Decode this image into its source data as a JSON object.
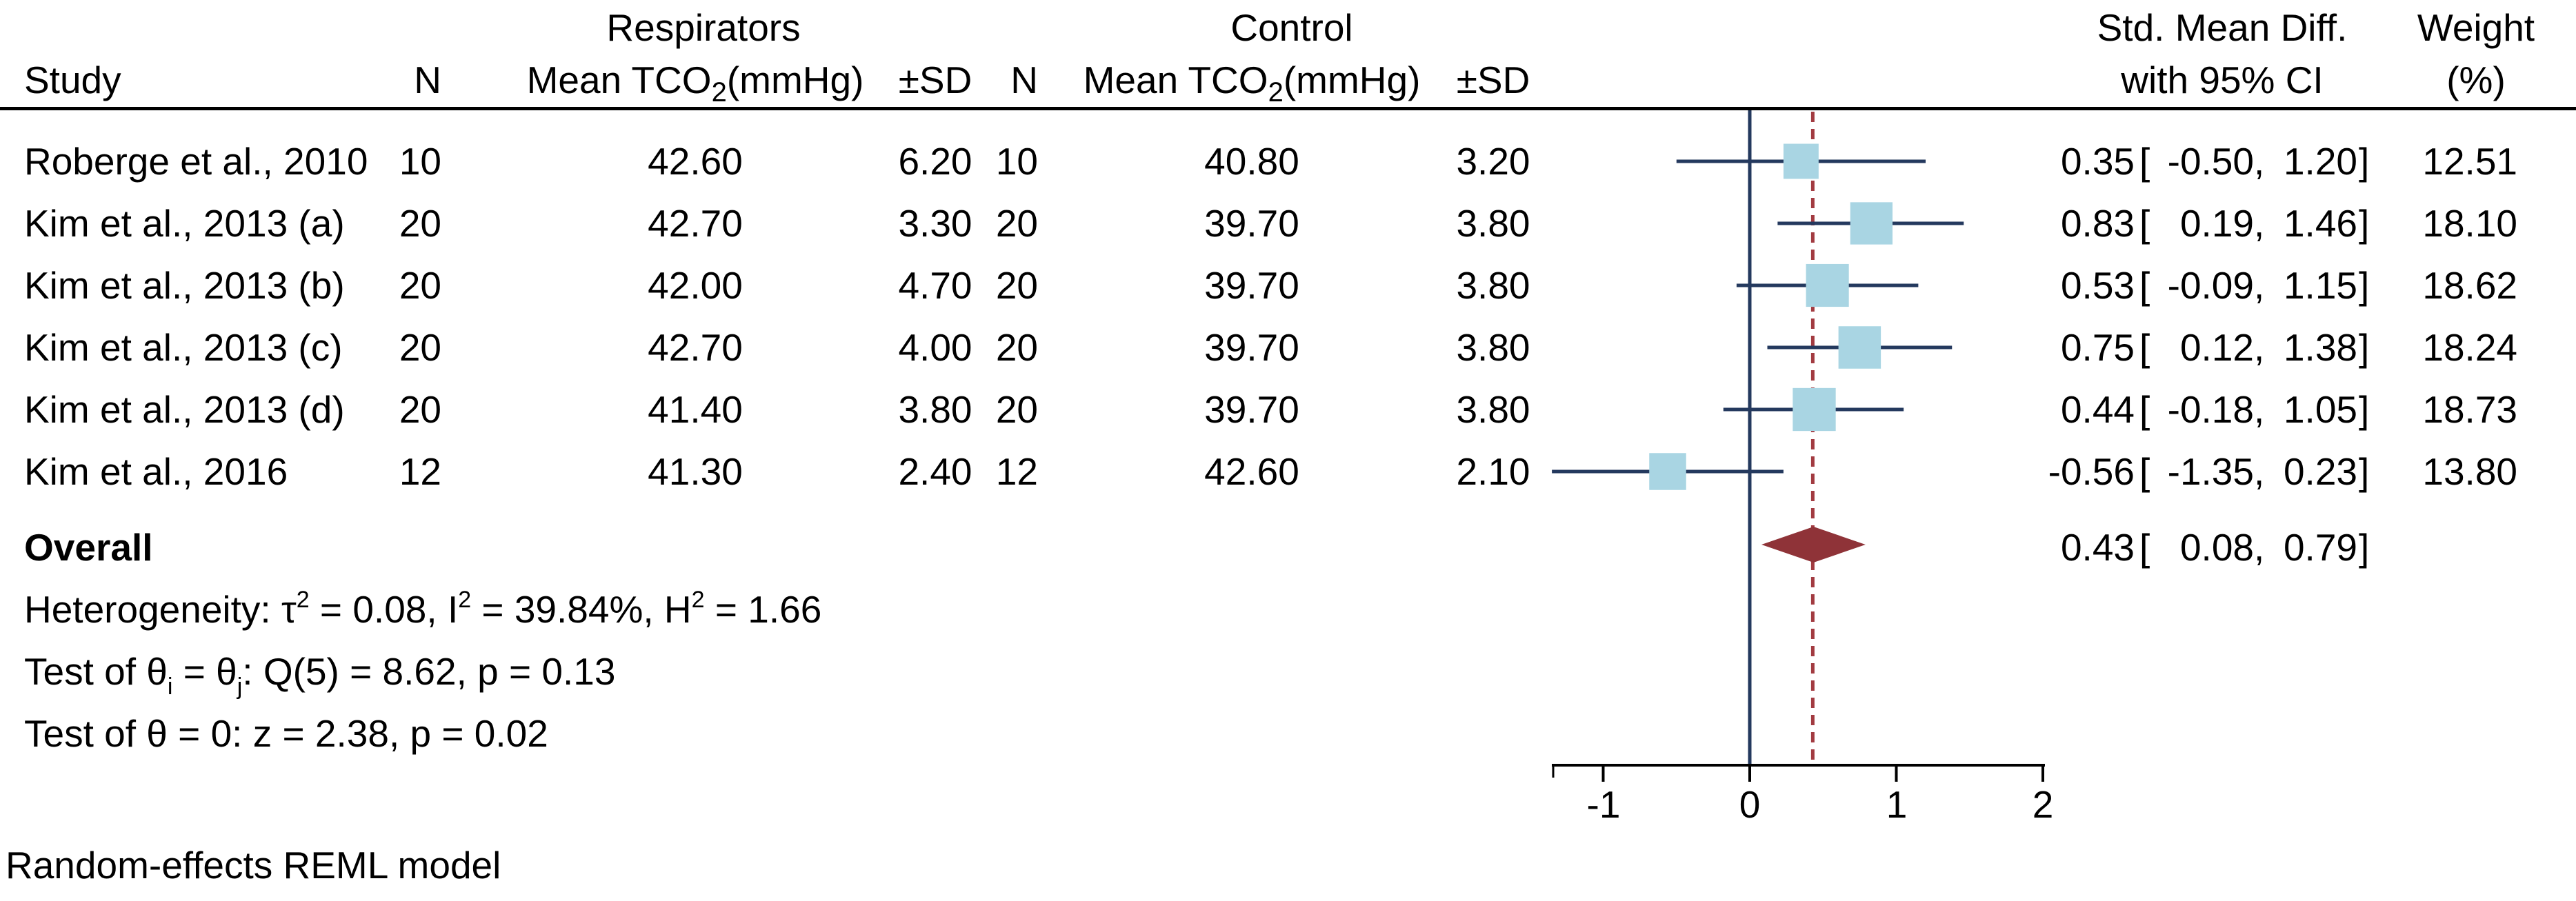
{
  "header": {
    "group1": "Respirators",
    "group2": "Control",
    "col_study": "Study",
    "col_n": "N",
    "mean_pre": "Mean TCO",
    "mean_sub": "2",
    "mean_post": "(mmHg)",
    "col_sd": "±SD",
    "smd_line1": "Std. Mean Diff.",
    "smd_line2": "with 95% CI",
    "weight_line1": "Weight",
    "weight_line2": "(%)"
  },
  "punct": {
    "open": "[",
    "comma": ",",
    "close": "]"
  },
  "rows": [
    {
      "study": "Roberge et al., 2010",
      "n1": "10",
      "mean1": "42.60",
      "sd1": "6.20",
      "n2": "10",
      "mean2": "40.80",
      "sd2": "3.20",
      "est": "0.35",
      "lo": "-0.50",
      "hi": "1.20",
      "weight": "12.51"
    },
    {
      "study": "Kim et al., 2013 (a)",
      "n1": "20",
      "mean1": "42.70",
      "sd1": "3.30",
      "n2": "20",
      "mean2": "39.70",
      "sd2": "3.80",
      "est": "0.83",
      "lo": "0.19",
      "hi": "1.46",
      "weight": "18.10"
    },
    {
      "study": "Kim et al., 2013 (b)",
      "n1": "20",
      "mean1": "42.00",
      "sd1": "4.70",
      "n2": "20",
      "mean2": "39.70",
      "sd2": "3.80",
      "est": "0.53",
      "lo": "-0.09",
      "hi": "1.15",
      "weight": "18.62"
    },
    {
      "study": "Kim et al., 2013 (c)",
      "n1": "20",
      "mean1": "42.70",
      "sd1": "4.00",
      "n2": "20",
      "mean2": "39.70",
      "sd2": "3.80",
      "est": "0.75",
      "lo": "0.12",
      "hi": "1.38",
      "weight": "18.24"
    },
    {
      "study": "Kim et al., 2013 (d)",
      "n1": "20",
      "mean1": "41.40",
      "sd1": "3.80",
      "n2": "20",
      "mean2": "39.70",
      "sd2": "3.80",
      "est": "0.44",
      "lo": "-0.18",
      "hi": "1.05",
      "weight": "18.73"
    },
    {
      "study": "Kim et al., 2016",
      "n1": "12",
      "mean1": "41.30",
      "sd1": "2.40",
      "n2": "12",
      "mean2": "42.60",
      "sd2": "2.10",
      "est": "-0.56",
      "lo": "-1.35",
      "hi": "0.23",
      "weight": "13.80"
    }
  ],
  "overall_row": {
    "label": "Overall",
    "est": "0.43",
    "lo": "0.08",
    "hi": "0.79"
  },
  "stats": {
    "het": [
      "Heterogeneity: τ",
      "2",
      " = 0.08, I",
      "2",
      " = 39.84%, H",
      "2",
      " = 1.66"
    ],
    "test1": [
      "Test of θ",
      "i",
      " = θ",
      "j",
      ": Q(5) = 8.62, p = 0.13"
    ],
    "test2": "Test of θ = 0: z = 2.38, p = 0.02"
  },
  "footer": "Random-effects REML model",
  "axis": {
    "ticks": [
      "-1",
      "0",
      "1",
      "2"
    ]
  },
  "colors": {
    "square": "#a9d5e3",
    "ci_line": "#24395e",
    "zero_line": "#24395e",
    "overall_dashed": "#a23b41",
    "diamond": "#8f3338",
    "axis": "#000000"
  },
  "chart_data": {
    "type": "forest",
    "title": "",
    "effect_label": "Std. Mean Diff. with 95% CI",
    "xlim": [
      -1.35,
      2.0
    ],
    "x_ticks": [
      -1,
      0,
      1,
      2
    ],
    "zero_line": 0,
    "overall_line": 0.43,
    "grid": false,
    "studies": [
      {
        "name": "Roberge et al., 2010",
        "n_treat": 10,
        "mean_treat": 42.6,
        "sd_treat": 6.2,
        "n_ctrl": 10,
        "mean_ctrl": 40.8,
        "sd_ctrl": 3.2,
        "est": 0.35,
        "lo": -0.5,
        "hi": 1.2,
        "weight": 12.51
      },
      {
        "name": "Kim et al., 2013 (a)",
        "n_treat": 20,
        "mean_treat": 42.7,
        "sd_treat": 3.3,
        "n_ctrl": 20,
        "mean_ctrl": 39.7,
        "sd_ctrl": 3.8,
        "est": 0.83,
        "lo": 0.19,
        "hi": 1.46,
        "weight": 18.1
      },
      {
        "name": "Kim et al., 2013 (b)",
        "n_treat": 20,
        "mean_treat": 42.0,
        "sd_treat": 4.7,
        "n_ctrl": 20,
        "mean_ctrl": 39.7,
        "sd_ctrl": 3.8,
        "est": 0.53,
        "lo": -0.09,
        "hi": 1.15,
        "weight": 18.62
      },
      {
        "name": "Kim et al., 2013 (c)",
        "n_treat": 20,
        "mean_treat": 42.7,
        "sd_treat": 4.0,
        "n_ctrl": 20,
        "mean_ctrl": 39.7,
        "sd_ctrl": 3.8,
        "est": 0.75,
        "lo": 0.12,
        "hi": 1.38,
        "weight": 18.24
      },
      {
        "name": "Kim et al., 2013 (d)",
        "n_treat": 20,
        "mean_treat": 41.4,
        "sd_treat": 3.8,
        "n_ctrl": 20,
        "mean_ctrl": 39.7,
        "sd_ctrl": 3.8,
        "est": 0.44,
        "lo": -0.18,
        "hi": 1.05,
        "weight": 18.73
      },
      {
        "name": "Kim et al., 2016",
        "n_treat": 12,
        "mean_treat": 41.3,
        "sd_treat": 2.4,
        "n_ctrl": 12,
        "mean_ctrl": 42.6,
        "sd_ctrl": 2.1,
        "est": -0.56,
        "lo": -1.35,
        "hi": 0.23,
        "weight": 13.8
      }
    ],
    "overall": {
      "est": 0.43,
      "lo": 0.08,
      "hi": 0.79
    },
    "heterogeneity": {
      "tau2": 0.08,
      "I2_pct": 39.84,
      "H2": 1.66
    },
    "test_Q": {
      "df": 5,
      "Q": 8.62,
      "p": 0.13
    },
    "test_z": {
      "z": 2.38,
      "p": 0.02
    },
    "model": "Random-effects REML model"
  }
}
